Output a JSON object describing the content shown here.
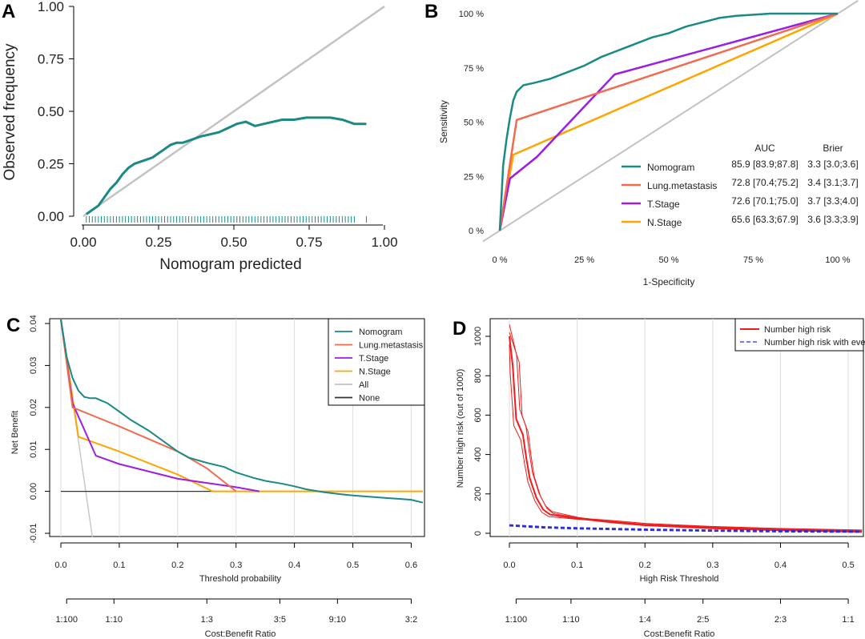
{
  "colors": {
    "teal": "#1a8a84",
    "salmon": "#f26a50",
    "purple": "#9b1ee8",
    "orange": "#ffa500",
    "gray": "#c2c2c2",
    "black": "#333333",
    "red": "#ee1c1c",
    "blue": "#2b2bd8"
  },
  "chart_data": [
    {
      "panel": "A",
      "type": "line",
      "title": "",
      "xlabel": "Nomogram predicted",
      "ylabel": "Observed frequency",
      "xlim": [
        0,
        1
      ],
      "ylim": [
        0,
        1
      ],
      "xticks": [
        "0.00",
        "0.25",
        "0.50",
        "0.75",
        "1.00"
      ],
      "yticks": [
        "0.00",
        "0.25",
        "0.50",
        "0.75",
        "1.00"
      ],
      "reference_line": "ideal (y = x)",
      "series": [
        {
          "name": "Nomogram",
          "color": "#1a8a84",
          "x": [
            0.01,
            0.03,
            0.05,
            0.07,
            0.09,
            0.11,
            0.13,
            0.15,
            0.17,
            0.19,
            0.21,
            0.23,
            0.25,
            0.27,
            0.29,
            0.31,
            0.33,
            0.35,
            0.37,
            0.39,
            0.42,
            0.45,
            0.48,
            0.51,
            0.54,
            0.57,
            0.6,
            0.63,
            0.66,
            0.7,
            0.74,
            0.78,
            0.82,
            0.86,
            0.9,
            0.94
          ],
          "y": [
            0.01,
            0.03,
            0.05,
            0.09,
            0.13,
            0.16,
            0.2,
            0.23,
            0.25,
            0.26,
            0.27,
            0.28,
            0.3,
            0.32,
            0.34,
            0.35,
            0.35,
            0.36,
            0.37,
            0.38,
            0.39,
            0.4,
            0.42,
            0.44,
            0.45,
            0.43,
            0.44,
            0.45,
            0.46,
            0.46,
            0.47,
            0.47,
            0.47,
            0.46,
            0.44,
            0.44
          ]
        }
      ],
      "rug_x": [
        0.01,
        0.02,
        0.03,
        0.04,
        0.05,
        0.06,
        0.07,
        0.08,
        0.09,
        0.1,
        0.11,
        0.12,
        0.13,
        0.14,
        0.15,
        0.16,
        0.17,
        0.18,
        0.19,
        0.2,
        0.21,
        0.22,
        0.23,
        0.24,
        0.25,
        0.26,
        0.27,
        0.28,
        0.29,
        0.3,
        0.31,
        0.32,
        0.33,
        0.34,
        0.35,
        0.36,
        0.37,
        0.38,
        0.39,
        0.4,
        0.41,
        0.42,
        0.43,
        0.44,
        0.45,
        0.46,
        0.47,
        0.48,
        0.49,
        0.5,
        0.51,
        0.52,
        0.53,
        0.54,
        0.55,
        0.56,
        0.57,
        0.58,
        0.59,
        0.6,
        0.61,
        0.62,
        0.63,
        0.64,
        0.65,
        0.66,
        0.67,
        0.68,
        0.69,
        0.7,
        0.71,
        0.72,
        0.73,
        0.74,
        0.75,
        0.76,
        0.77,
        0.78,
        0.79,
        0.8,
        0.81,
        0.82,
        0.83,
        0.84,
        0.85,
        0.86,
        0.87,
        0.88,
        0.89,
        0.9,
        0.94
      ]
    },
    {
      "panel": "B",
      "type": "line",
      "title": "",
      "xlabel": "1-Specificity",
      "ylabel": "Sensitivity",
      "xticks": [
        "0 %",
        "25 %",
        "50 %",
        "75 %",
        "100 %"
      ],
      "yticks": [
        "0 %",
        "25 %",
        "50 %",
        "75 %",
        "100 %"
      ],
      "legend_header": {
        "auc": "AUC",
        "brier": "Brier"
      },
      "series": [
        {
          "name": "Nomogram",
          "color": "#1a8a84",
          "auc": "85.9 [83.9;87.8]",
          "brier": "3.3 [3.0;3.6]",
          "x": [
            0,
            0.01,
            0.02,
            0.03,
            0.04,
            0.05,
            0.07,
            0.1,
            0.15,
            0.2,
            0.25,
            0.3,
            0.35,
            0.4,
            0.45,
            0.5,
            0.55,
            0.6,
            0.65,
            0.7,
            0.75,
            0.8,
            0.9,
            1.0
          ],
          "y": [
            0,
            0.3,
            0.42,
            0.52,
            0.6,
            0.64,
            0.67,
            0.68,
            0.7,
            0.73,
            0.76,
            0.8,
            0.83,
            0.86,
            0.89,
            0.91,
            0.94,
            0.96,
            0.98,
            0.99,
            0.995,
            1.0,
            1.0,
            1.0
          ]
        },
        {
          "name": "Lung.metastasis",
          "color": "#f26a50",
          "auc": "72.8 [70.4;75.2]",
          "brier": "3.4 [3.1;3.7]",
          "x": [
            0,
            0.05,
            1.0
          ],
          "y": [
            0,
            0.51,
            1.0
          ]
        },
        {
          "name": "T.Stage",
          "color": "#9b1ee8",
          "auc": "72.6 [70.1;75.0]",
          "brier": "3.7 [3.3;4.0]",
          "x": [
            0,
            0.03,
            0.11,
            0.34,
            1.0
          ],
          "y": [
            0,
            0.24,
            0.34,
            0.72,
            1.0
          ]
        },
        {
          "name": "N.Stage",
          "color": "#ffa500",
          "auc": "65.6 [63.3;67.9]",
          "brier": "3.6 [3.3;3.9]",
          "x": [
            0,
            0.04,
            1.0
          ],
          "y": [
            0,
            0.35,
            1.0
          ]
        }
      ]
    },
    {
      "panel": "C",
      "type": "line",
      "title": "",
      "xlabel": "Threshold probability",
      "ylabel": "Net Benefit",
      "xlabel2": "Cost:Benefit Ratio",
      "xticks": [
        "0.0",
        "0.1",
        "0.2",
        "0.3",
        "0.4",
        "0.5",
        "0.6"
      ],
      "yticks": [
        "-0.01",
        "0.00",
        "0.01",
        "0.02",
        "0.03",
        "0.04"
      ],
      "ratio_ticks": [
        {
          "t": 0.0099,
          "label": "1:100"
        },
        {
          "t": 0.0909,
          "label": "1:10"
        },
        {
          "t": 0.25,
          "label": "1:3"
        },
        {
          "t": 0.375,
          "label": "3:5"
        },
        {
          "t": 0.4737,
          "label": "9:10"
        },
        {
          "t": 0.6,
          "label": "3:2"
        }
      ],
      "series": [
        {
          "name": "Nomogram",
          "color": "#1a8a84",
          "x": [
            0,
            0.01,
            0.02,
            0.03,
            0.04,
            0.05,
            0.06,
            0.08,
            0.1,
            0.12,
            0.15,
            0.18,
            0.2,
            0.22,
            0.25,
            0.28,
            0.3,
            0.33,
            0.35,
            0.38,
            0.4,
            0.42,
            0.45,
            0.48,
            0.5,
            0.55,
            0.6,
            0.62
          ],
          "y": [
            0.041,
            0.032,
            0.027,
            0.024,
            0.0225,
            0.0222,
            0.0222,
            0.021,
            0.019,
            0.017,
            0.0145,
            0.0115,
            0.0095,
            0.008,
            0.0068,
            0.0058,
            0.0045,
            0.0032,
            0.0025,
            0.0018,
            0.0012,
            0.0005,
            -0.0002,
            -0.0007,
            -0.001,
            -0.0015,
            -0.002,
            -0.0027
          ]
        },
        {
          "name": "Lung.metastasis",
          "color": "#f26a50",
          "x": [
            0,
            0.02,
            0.1,
            0.2,
            0.25,
            0.3
          ],
          "y": [
            0.041,
            0.02,
            0.0155,
            0.0095,
            0.0055,
            0.0
          ]
        },
        {
          "name": "T.Stage",
          "color": "#9b1ee8",
          "x": [
            0,
            0.02,
            0.06,
            0.1,
            0.2,
            0.3,
            0.34
          ],
          "y": [
            0.041,
            0.021,
            0.0085,
            0.0065,
            0.003,
            0.001,
            0.0
          ]
        },
        {
          "name": "N.Stage",
          "color": "#ffa500",
          "x": [
            0,
            0.03,
            0.1,
            0.2,
            0.26,
            0.62
          ],
          "y": [
            0.041,
            0.013,
            0.0095,
            0.004,
            0.0,
            0.0
          ]
        },
        {
          "name": "All",
          "color": "#c2c2c2",
          "x": [
            0,
            0.054
          ],
          "y": [
            0.041,
            -0.011
          ]
        },
        {
          "name": "None",
          "color": "#333333",
          "x": [
            0,
            0.62
          ],
          "y": [
            0.0,
            0.0
          ]
        }
      ]
    },
    {
      "panel": "D",
      "type": "line",
      "title": "",
      "xlabel": "High Risk Threshold",
      "ylabel": "Number high risk (out of 1000)",
      "xlabel2": "Cost:Benefit Ratio",
      "xticks": [
        "0.0",
        "0.1",
        "0.2",
        "0.3",
        "0.4",
        "0.5"
      ],
      "yticks": [
        "0",
        "200",
        "400",
        "600",
        "800",
        "1000"
      ],
      "ratio_ticks": [
        {
          "t": 0.0099,
          "label": "1:100"
        },
        {
          "t": 0.0909,
          "label": "1:10"
        },
        {
          "t": 0.2,
          "label": "1:4"
        },
        {
          "t": 0.2857,
          "label": "2:5"
        },
        {
          "t": 0.4,
          "label": "2:3"
        },
        {
          "t": 0.5,
          "label": "1:1"
        }
      ],
      "series": [
        {
          "name": "Number high risk",
          "color": "#ee1c1c",
          "style": "solid",
          "x": [
            0,
            0.005,
            0.01,
            0.015,
            0.02,
            0.025,
            0.03,
            0.04,
            0.05,
            0.06,
            0.08,
            0.1,
            0.15,
            0.2,
            0.3,
            0.4,
            0.52
          ],
          "y": [
            1000,
            850,
            580,
            540,
            500,
            380,
            280,
            180,
            120,
            95,
            85,
            75,
            60,
            45,
            30,
            20,
            12
          ]
        },
        {
          "name": "Number high risk with event",
          "color": "#2b2bd8",
          "style": "dashed",
          "x": [
            0,
            0.02,
            0.05,
            0.1,
            0.2,
            0.3,
            0.4,
            0.52
          ],
          "y": [
            40,
            36,
            30,
            25,
            18,
            13,
            10,
            8
          ]
        }
      ]
    }
  ],
  "panels": {
    "a": "A",
    "b": "B",
    "c": "C",
    "d": "D"
  }
}
